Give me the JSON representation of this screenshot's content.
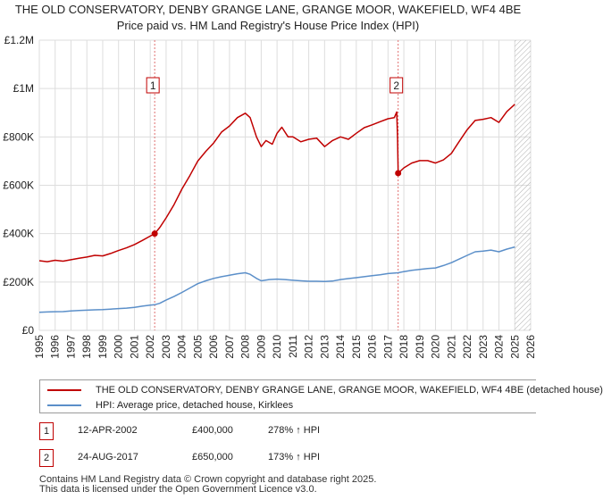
{
  "title": {
    "line1": "THE OLD CONSERVATORY, DENBY GRANGE LANE, GRANGE MOOR, WAKEFIELD, WF4 4BE",
    "line2": "Price paid vs. HM Land Registry's House Price Index (HPI)"
  },
  "chart_data": {
    "type": "line",
    "title": "THE OLD CONSERVATORY, DENBY GRANGE LANE, GRANGE MOOR, WAKEFIELD, WF4 4BE",
    "subtitle": "Price paid vs. HM Land Registry's House Price Index (HPI)",
    "xlim": [
      1995,
      2026
    ],
    "ylim": [
      0,
      1200000
    ],
    "x_ticks": [
      1995,
      1996,
      1997,
      1998,
      1999,
      2000,
      2001,
      2002,
      2003,
      2004,
      2005,
      2006,
      2007,
      2008,
      2009,
      2010,
      2011,
      2012,
      2013,
      2014,
      2015,
      2016,
      2017,
      2018,
      2019,
      2020,
      2021,
      2022,
      2023,
      2024,
      2025,
      2026
    ],
    "y_ticks": [
      {
        "value": 0,
        "label": "£0"
      },
      {
        "value": 200000,
        "label": "£200K"
      },
      {
        "value": 400000,
        "label": "£400K"
      },
      {
        "value": 600000,
        "label": "£600K"
      },
      {
        "value": 800000,
        "label": "£800K"
      },
      {
        "value": 1000000,
        "label": "£1M"
      },
      {
        "value": 1200000,
        "label": "£1.2M"
      }
    ],
    "grid": true,
    "future_hatch_from": 2025.0,
    "series": [
      {
        "name": "THE OLD CONSERVATORY, DENBY GRANGE LANE, GRANGE MOOR, WAKEFIELD, WF4 4BE (detached house)",
        "color": "#c00000",
        "points": [
          [
            1995.0,
            288000
          ],
          [
            1995.5,
            284000
          ],
          [
            1996.0,
            290000
          ],
          [
            1996.5,
            286000
          ],
          [
            1997.0,
            292000
          ],
          [
            1997.5,
            298000
          ],
          [
            1998.0,
            303000
          ],
          [
            1998.5,
            310000
          ],
          [
            1999.0,
            308000
          ],
          [
            1999.5,
            318000
          ],
          [
            2000.0,
            330000
          ],
          [
            2000.5,
            341000
          ],
          [
            2001.0,
            355000
          ],
          [
            2001.5,
            372000
          ],
          [
            2002.0,
            390000
          ],
          [
            2002.28,
            400000
          ],
          [
            2002.6,
            425000
          ],
          [
            2003.0,
            465000
          ],
          [
            2003.5,
            520000
          ],
          [
            2004.0,
            585000
          ],
          [
            2004.5,
            640000
          ],
          [
            2005.0,
            700000
          ],
          [
            2005.5,
            740000
          ],
          [
            2006.0,
            775000
          ],
          [
            2006.5,
            820000
          ],
          [
            2007.0,
            845000
          ],
          [
            2007.5,
            880000
          ],
          [
            2008.0,
            898000
          ],
          [
            2008.3,
            880000
          ],
          [
            2008.7,
            800000
          ],
          [
            2009.0,
            760000
          ],
          [
            2009.3,
            785000
          ],
          [
            2009.7,
            770000
          ],
          [
            2010.0,
            815000
          ],
          [
            2010.3,
            840000
          ],
          [
            2010.7,
            800000
          ],
          [
            2011.0,
            800000
          ],
          [
            2011.5,
            780000
          ],
          [
            2012.0,
            790000
          ],
          [
            2012.5,
            795000
          ],
          [
            2013.0,
            760000
          ],
          [
            2013.5,
            785000
          ],
          [
            2014.0,
            800000
          ],
          [
            2014.5,
            790000
          ],
          [
            2015.0,
            815000
          ],
          [
            2015.5,
            838000
          ],
          [
            2016.0,
            850000
          ],
          [
            2016.5,
            863000
          ],
          [
            2017.0,
            875000
          ],
          [
            2017.4,
            880000
          ],
          [
            2017.55,
            903000
          ],
          [
            2017.6,
            800000
          ],
          [
            2017.64,
            650000
          ],
          [
            2018.0,
            672000
          ],
          [
            2018.5,
            692000
          ],
          [
            2019.0,
            702000
          ],
          [
            2019.5,
            702000
          ],
          [
            2020.0,
            692000
          ],
          [
            2020.5,
            705000
          ],
          [
            2021.0,
            732000
          ],
          [
            2021.5,
            782000
          ],
          [
            2022.0,
            830000
          ],
          [
            2022.5,
            868000
          ],
          [
            2023.0,
            873000
          ],
          [
            2023.5,
            880000
          ],
          [
            2024.0,
            860000
          ],
          [
            2024.5,
            905000
          ],
          [
            2025.0,
            935000
          ]
        ]
      },
      {
        "name": "HPI: Average price, detached house, Kirklees",
        "color": "#5b8fc9",
        "points": [
          [
            1995.0,
            75000
          ],
          [
            1995.5,
            76000
          ],
          [
            1996.0,
            77000
          ],
          [
            1996.5,
            77500
          ],
          [
            1997.0,
            80000
          ],
          [
            1997.5,
            82000
          ],
          [
            1998.0,
            83500
          ],
          [
            1998.5,
            85000
          ],
          [
            1999.0,
            86000
          ],
          [
            1999.5,
            88000
          ],
          [
            2000.0,
            90000
          ],
          [
            2000.5,
            92000
          ],
          [
            2001.0,
            95000
          ],
          [
            2001.5,
            100000
          ],
          [
            2002.0,
            104000
          ],
          [
            2002.28,
            106000
          ],
          [
            2002.6,
            112000
          ],
          [
            2003.0,
            125000
          ],
          [
            2003.5,
            140000
          ],
          [
            2004.0,
            157000
          ],
          [
            2004.5,
            175000
          ],
          [
            2005.0,
            193000
          ],
          [
            2005.5,
            205000
          ],
          [
            2006.0,
            215000
          ],
          [
            2006.5,
            222000
          ],
          [
            2007.0,
            228000
          ],
          [
            2007.5,
            234000
          ],
          [
            2008.0,
            238000
          ],
          [
            2008.3,
            232000
          ],
          [
            2008.7,
            215000
          ],
          [
            2009.0,
            205000
          ],
          [
            2009.5,
            210000
          ],
          [
            2010.0,
            212000
          ],
          [
            2010.5,
            210000
          ],
          [
            2011.0,
            207000
          ],
          [
            2011.5,
            205000
          ],
          [
            2012.0,
            203000
          ],
          [
            2012.5,
            203000
          ],
          [
            2013.0,
            202000
          ],
          [
            2013.5,
            204000
          ],
          [
            2014.0,
            210000
          ],
          [
            2014.5,
            214000
          ],
          [
            2015.0,
            218000
          ],
          [
            2015.5,
            222000
          ],
          [
            2016.0,
            226000
          ],
          [
            2016.5,
            230000
          ],
          [
            2017.0,
            235000
          ],
          [
            2017.64,
            238000
          ],
          [
            2018.0,
            243000
          ],
          [
            2018.5,
            248000
          ],
          [
            2019.0,
            252000
          ],
          [
            2019.5,
            256000
          ],
          [
            2020.0,
            258000
          ],
          [
            2020.5,
            268000
          ],
          [
            2021.0,
            280000
          ],
          [
            2021.5,
            295000
          ],
          [
            2022.0,
            310000
          ],
          [
            2022.5,
            325000
          ],
          [
            2023.0,
            328000
          ],
          [
            2023.5,
            332000
          ],
          [
            2024.0,
            325000
          ],
          [
            2024.5,
            336000
          ],
          [
            2025.0,
            345000
          ]
        ]
      }
    ],
    "markers": [
      {
        "id": "1",
        "x": 2002.28,
        "y": 400000
      },
      {
        "id": "2",
        "x": 2017.64,
        "y": 650000
      }
    ]
  },
  "legend": [
    {
      "label": "THE OLD CONSERVATORY, DENBY GRANGE LANE, GRANGE MOOR, WAKEFIELD, WF4 4BE (detached house)",
      "color": "#c00000"
    },
    {
      "label": "HPI: Average price, detached house, Kirklees",
      "color": "#5b8fc9"
    }
  ],
  "sales": [
    {
      "id": "1",
      "date": "12-APR-2002",
      "price": "£400,000",
      "hpi": "278% ↑ HPI"
    },
    {
      "id": "2",
      "date": "24-AUG-2017",
      "price": "£650,000",
      "hpi": "173% ↑ HPI"
    }
  ],
  "footer": {
    "line1": "Contains HM Land Registry data © Crown copyright and database right 2025.",
    "line2": "This data is licensed under the Open Government Licence v3.0."
  }
}
